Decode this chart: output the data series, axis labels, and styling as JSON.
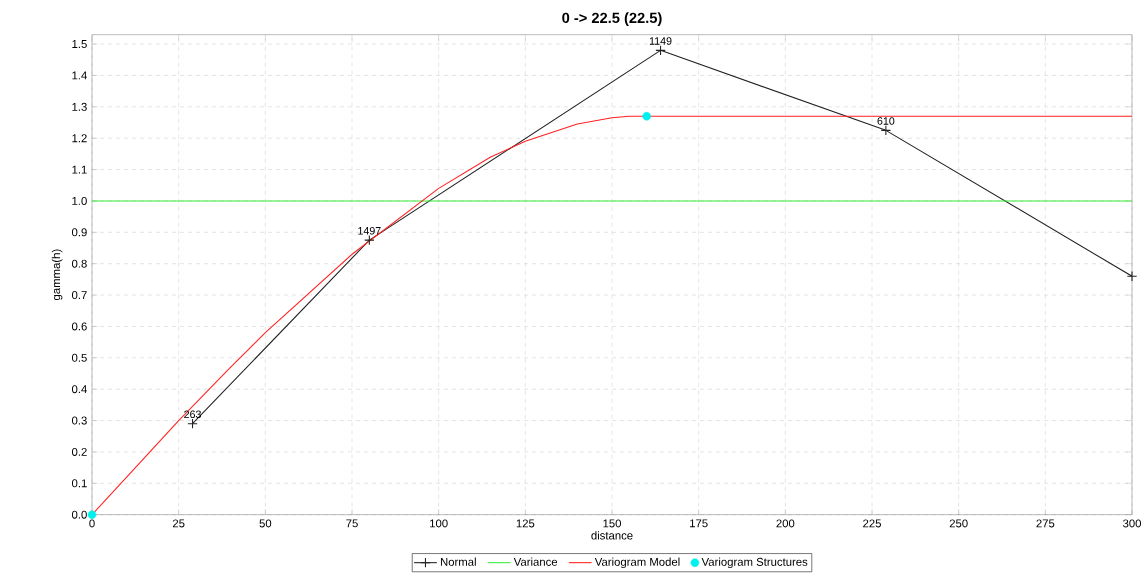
{
  "chart_data": {
    "type": "line",
    "title": "0 -> 22.5 (22.5)",
    "xlabel": "distance",
    "ylabel": "gamma(h)",
    "xlim": [
      0,
      300
    ],
    "ylim": [
      0,
      1.53
    ],
    "xticks": [
      0,
      25,
      50,
      75,
      100,
      125,
      150,
      175,
      200,
      225,
      250,
      275,
      300
    ],
    "yticks": [
      {
        "value": 0,
        "label": "0.0"
      },
      {
        "value": 0.1,
        "label": "0.1"
      },
      {
        "value": 0.2,
        "label": "0.2"
      },
      {
        "value": 0.3,
        "label": "0.3"
      },
      {
        "value": 0.4,
        "label": "0.4"
      },
      {
        "value": 0.5,
        "label": "0.5"
      },
      {
        "value": 0.6,
        "label": "0.6"
      },
      {
        "value": 0.7,
        "label": "0.7"
      },
      {
        "value": 0.8,
        "label": "0.8"
      },
      {
        "value": 0.9,
        "label": "0.9"
      },
      {
        "value": 1.0,
        "label": "1.0"
      },
      {
        "value": 1.1,
        "label": "1.1"
      },
      {
        "value": 1.2,
        "label": "1.2"
      },
      {
        "value": 1.3,
        "label": "1.3"
      },
      {
        "value": 1.4,
        "label": "1.4"
      },
      {
        "value": 1.5,
        "label": "1.5"
      }
    ],
    "grid": true,
    "legend": "bottom",
    "annotations": [
      {
        "text": "263",
        "x": 29,
        "y": 0.29
      },
      {
        "text": "1497",
        "x": 80,
        "y": 0.875
      },
      {
        "text": "1149",
        "x": 164,
        "y": 1.48
      },
      {
        "text": "610",
        "x": 229,
        "y": 1.225
      }
    ],
    "series": [
      {
        "name": "Normal",
        "color": "#222222",
        "marker": "cross",
        "x": [
          29,
          80,
          164,
          229,
          300
        ],
        "values": [
          0.29,
          0.875,
          1.48,
          1.225,
          0.76
        ]
      },
      {
        "name": "Variance",
        "color": "#33ee33",
        "marker": "none",
        "x": [
          0,
          300
        ],
        "values": [
          1.0,
          1.0
        ]
      },
      {
        "name": "Variogram Model",
        "color": "#ff2020",
        "marker": "none",
        "x": [
          0,
          10,
          25,
          40,
          50,
          75,
          100,
          115,
          125,
          140,
          150,
          155,
          300
        ],
        "values": [
          0,
          0.12,
          0.3,
          0.47,
          0.58,
          0.83,
          1.04,
          1.14,
          1.19,
          1.245,
          1.265,
          1.27,
          1.27
        ]
      },
      {
        "name": "Variogram Structures",
        "type": "scatter",
        "color": "#00f0f0",
        "marker": "circle",
        "x": [
          0,
          160
        ],
        "values": [
          0,
          1.27
        ]
      }
    ]
  }
}
